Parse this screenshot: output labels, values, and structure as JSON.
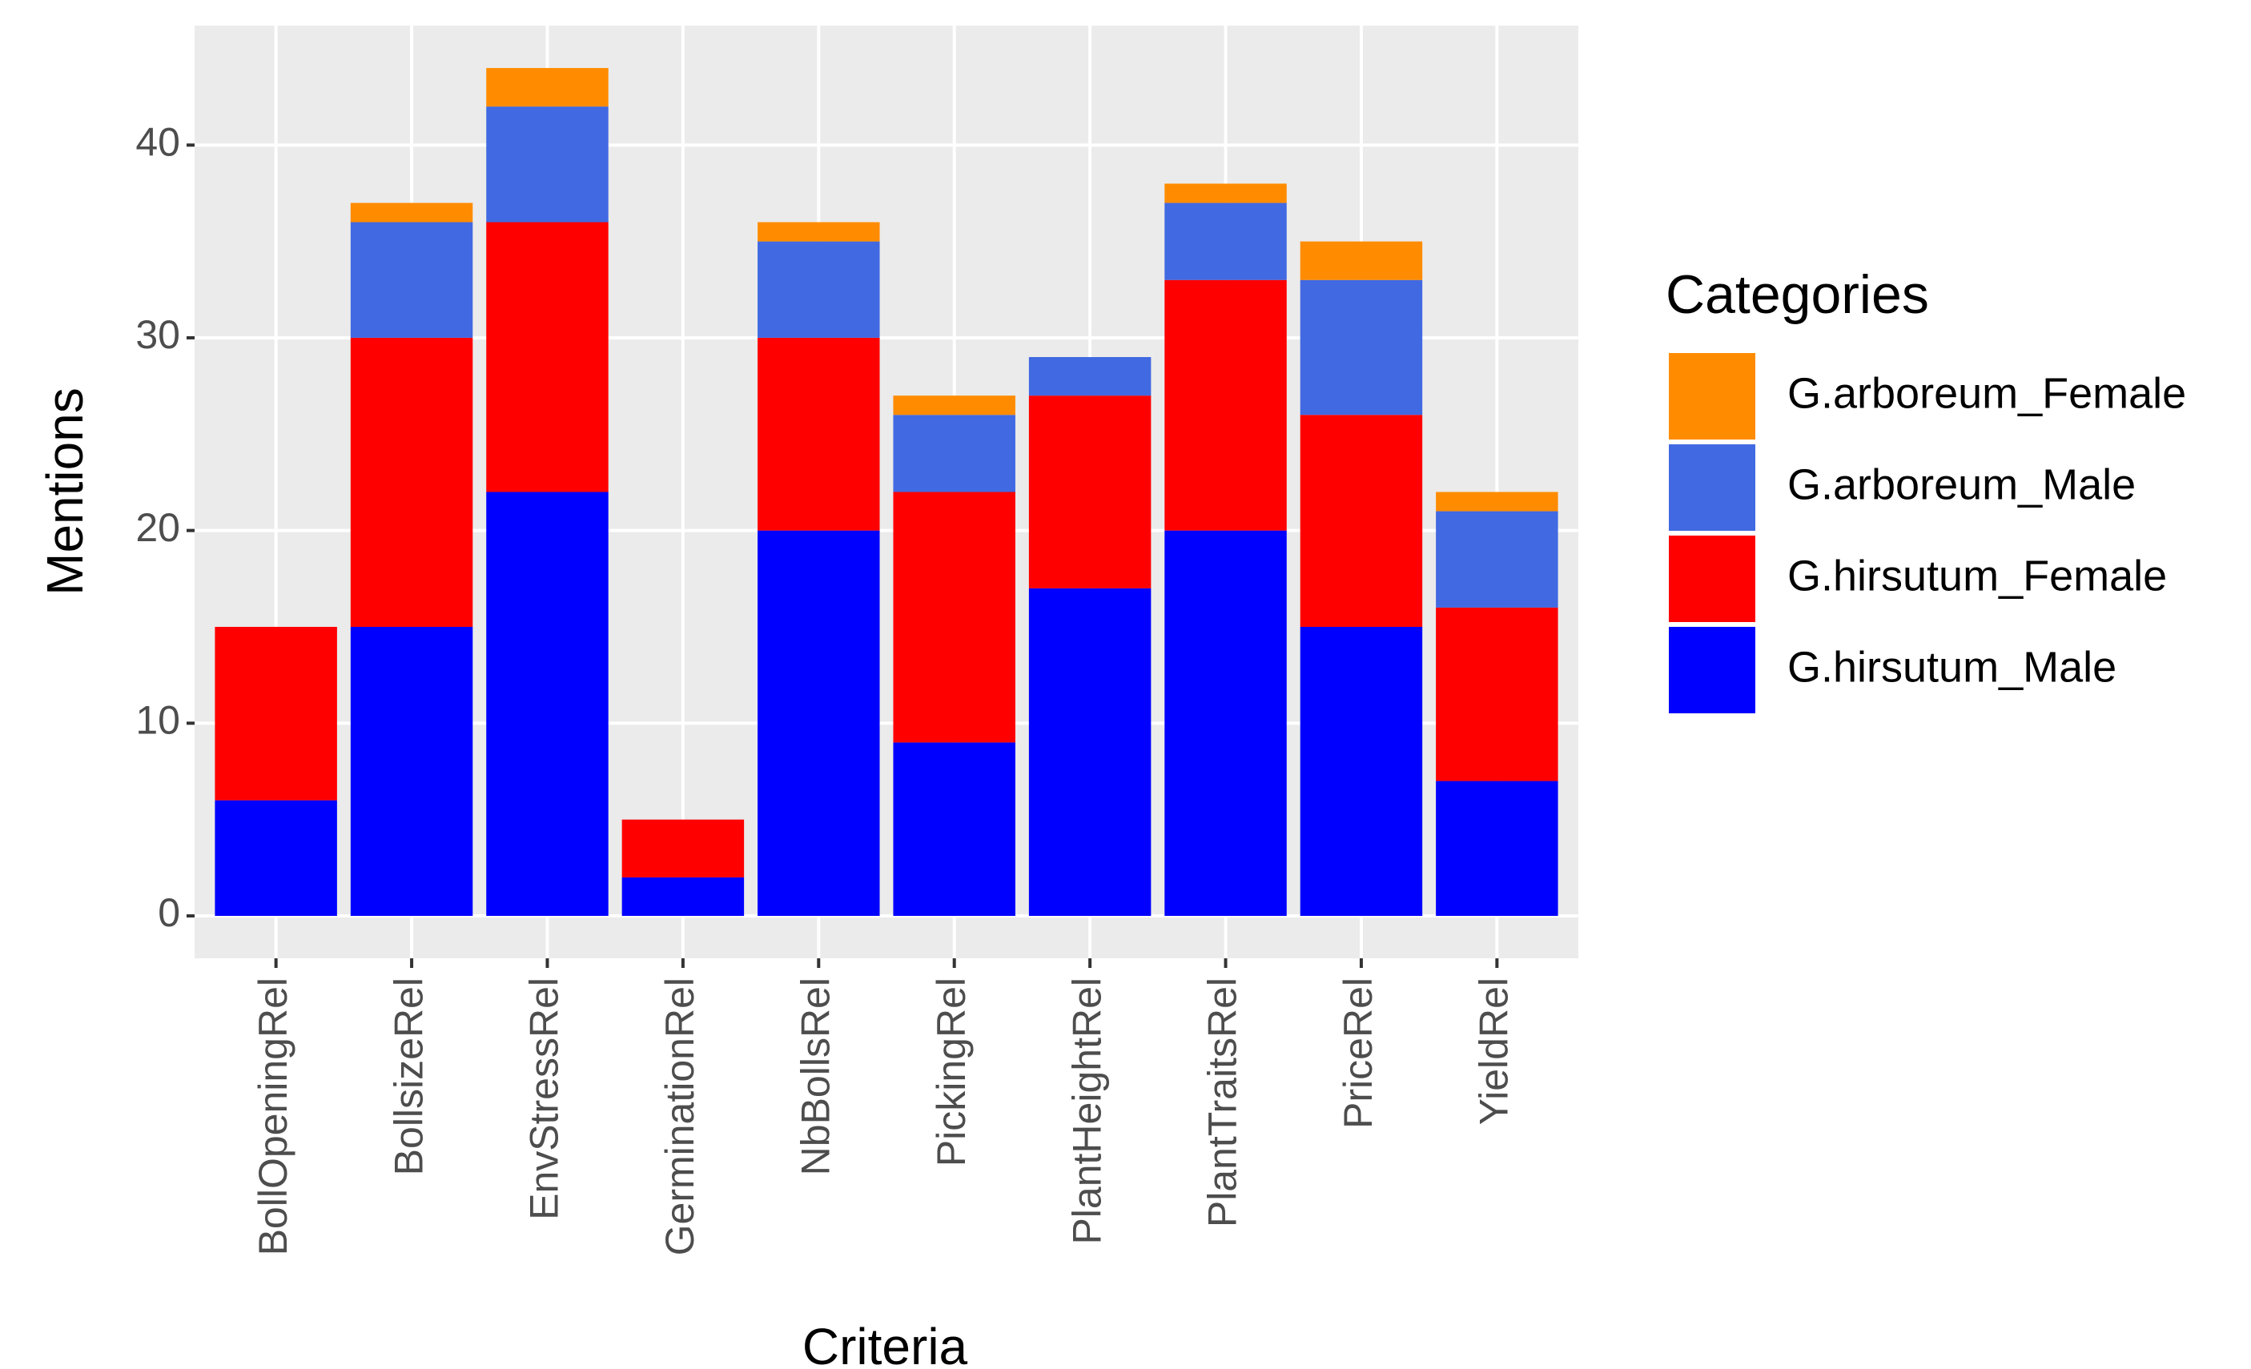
{
  "chart_data": {
    "type": "stacked_bar",
    "x_label": "Criteria",
    "y_label": "Mentions",
    "legend_title": "Categories",
    "legend_position": "right",
    "grid": true,
    "categories": [
      "BollOpeningRel",
      "BollsizeRel",
      "EnvStressRel",
      "GerminationRel",
      "NbBollsRel",
      "PickingRel",
      "PlantHeightRel",
      "PlantTraitsRel",
      "PriceRel",
      "YieldRel"
    ],
    "series": [
      {
        "name": "G.arboreum_Female",
        "color": "#ff8c00",
        "values": [
          0,
          1,
          2,
          0,
          1,
          1,
          0,
          1,
          2,
          1
        ]
      },
      {
        "name": "G.arboreum_Male",
        "color": "#4169e1",
        "values": [
          0,
          6,
          6,
          0,
          5,
          4,
          2,
          4,
          7,
          5
        ]
      },
      {
        "name": "G.hirsutum_Female",
        "color": "#ff0000",
        "values": [
          9,
          15,
          14,
          3,
          10,
          13,
          10,
          13,
          11,
          9
        ]
      },
      {
        "name": "G.hirsutum_Male",
        "color": "#0000ff",
        "values": [
          6,
          15,
          22,
          2,
          20,
          9,
          17,
          20,
          15,
          7
        ]
      }
    ],
    "ylim": [
      -2.2,
      46.2
    ],
    "yticks": [
      0,
      10,
      20,
      30,
      40
    ]
  }
}
